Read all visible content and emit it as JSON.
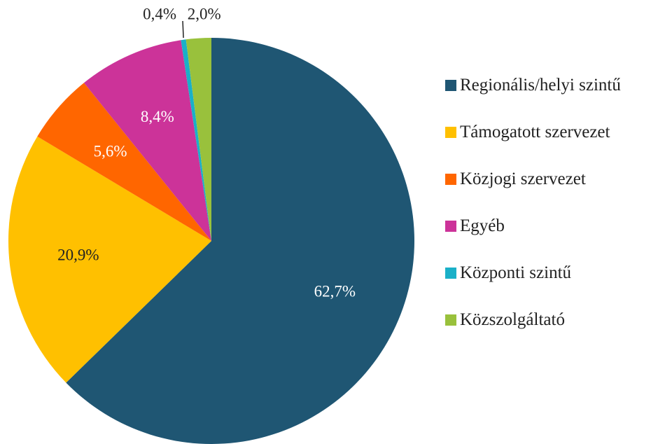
{
  "chart_data": {
    "type": "pie",
    "categories": [
      "Regionális/helyi szintű",
      "Támogatott szervezet",
      "Közjogi szervezet",
      "Egyéb",
      "Központi szintű",
      "Közszolgáltató"
    ],
    "values": [
      62.7,
      20.9,
      5.6,
      8.4,
      0.4,
      2.0
    ],
    "value_labels": [
      "62,7%",
      "20,9%",
      "5,6%",
      "8,4%",
      "0,4%",
      "2,0%"
    ],
    "colors": [
      "#1f5673",
      "#ffc000",
      "#ff6600",
      "#cc3399",
      "#1ab0c8",
      "#99c13c"
    ],
    "legend": "right"
  }
}
